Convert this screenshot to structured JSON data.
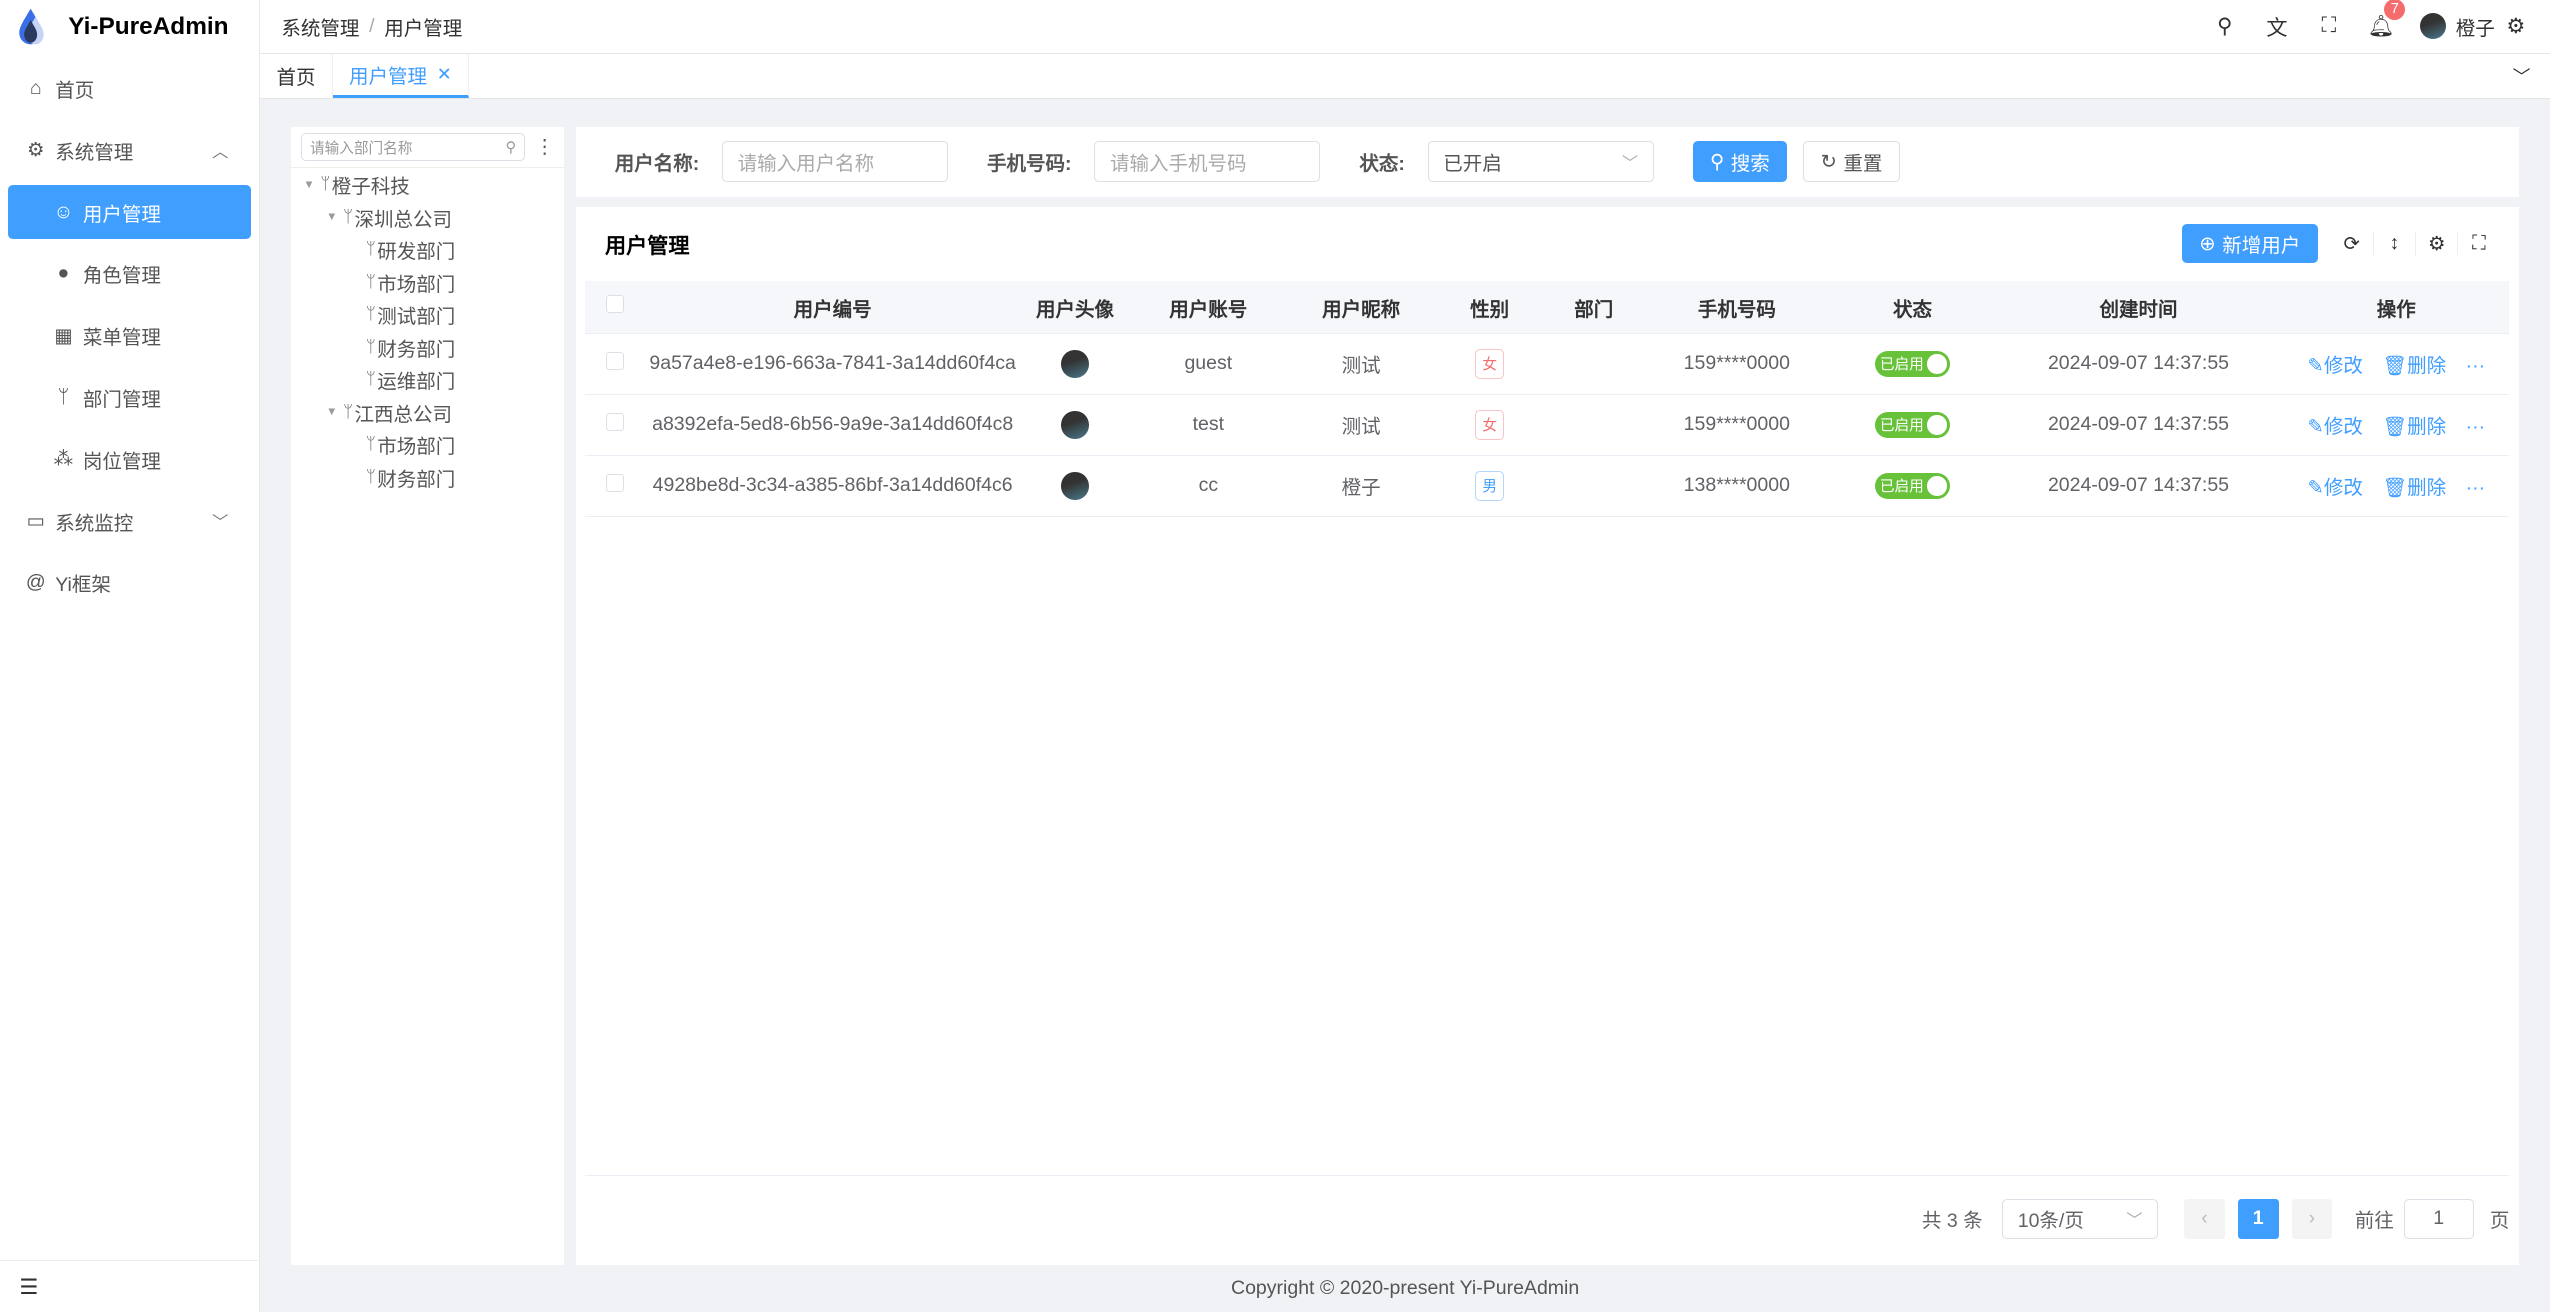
{
  "app": {
    "title": "Yi-PureAdmin"
  },
  "sidebar": {
    "items": [
      {
        "label": "首页",
        "icon": "home-icon"
      },
      {
        "label": "系统管理",
        "icon": "gear-icon",
        "expanded": true
      },
      {
        "label": "用户管理",
        "icon": "user-lock-icon",
        "active": true
      },
      {
        "label": "角色管理",
        "icon": "role-icon"
      },
      {
        "label": "菜单管理",
        "icon": "grid-icon"
      },
      {
        "label": "部门管理",
        "icon": "branch-icon"
      },
      {
        "label": "岗位管理",
        "icon": "network-icon"
      },
      {
        "label": "系统监控",
        "icon": "monitor-icon"
      },
      {
        "label": "Yi框架",
        "icon": "at-icon"
      }
    ]
  },
  "header": {
    "breadcrumb": [
      "系统管理",
      "用户管理"
    ],
    "notification_count": "7",
    "user_name": "橙子"
  },
  "tabs": [
    {
      "label": "首页"
    },
    {
      "label": "用户管理",
      "active": true
    }
  ],
  "tree": {
    "placeholder": "请输入部门名称",
    "nodes": [
      "橙子科技",
      "深圳总公司",
      "研发部门",
      "市场部门",
      "测试部门",
      "财务部门",
      "运维部门",
      "江西总公司",
      "市场部门",
      "财务部门"
    ]
  },
  "search": {
    "username_label": "用户名称:",
    "username_placeholder": "请输入用户名称",
    "phone_label": "手机号码:",
    "phone_placeholder": "请输入手机号码",
    "status_label": "状态:",
    "status_value": "已开启",
    "search_button": "搜索",
    "reset_button": "重置"
  },
  "table": {
    "title": "用户管理",
    "add_button": "新增用户",
    "columns": [
      "用户编号",
      "用户头像",
      "用户账号",
      "用户昵称",
      "性别",
      "部门",
      "手机号码",
      "状态",
      "创建时间",
      "操作"
    ],
    "rows": [
      {
        "id": "9a57a4e8-e196-663a-7841-3a14dd60f4ca",
        "account": "guest",
        "nickname": "测试",
        "gender": "女",
        "dept": "",
        "phone": "159****0000",
        "status": "已启用",
        "created": "2024-09-07 14:37:55"
      },
      {
        "id": "a8392efa-5ed8-6b56-9a9e-3a14dd60f4c8",
        "account": "test",
        "nickname": "测试",
        "gender": "女",
        "dept": "",
        "phone": "159****0000",
        "status": "已启用",
        "created": "2024-09-07 14:37:55"
      },
      {
        "id": "4928be8d-3c34-a385-86bf-3a14dd60f4c6",
        "account": "cc",
        "nickname": "橙子",
        "gender": "男",
        "dept": "",
        "phone": "138****0000",
        "status": "已启用",
        "created": "2024-09-07 14:37:55"
      }
    ],
    "edit_label": "修改",
    "delete_label": "删除"
  },
  "pagination": {
    "total": "共 3 条",
    "page_size": "10条/页",
    "current": "1",
    "goto_label": "前往",
    "goto_value": "1",
    "page_suffix": "页"
  },
  "footer": {
    "copyright": "Copyright © 2020-present Yi-PureAdmin"
  },
  "colors": {
    "primary": "#409eff",
    "success": "#67c23a",
    "danger": "#f56c6c"
  }
}
